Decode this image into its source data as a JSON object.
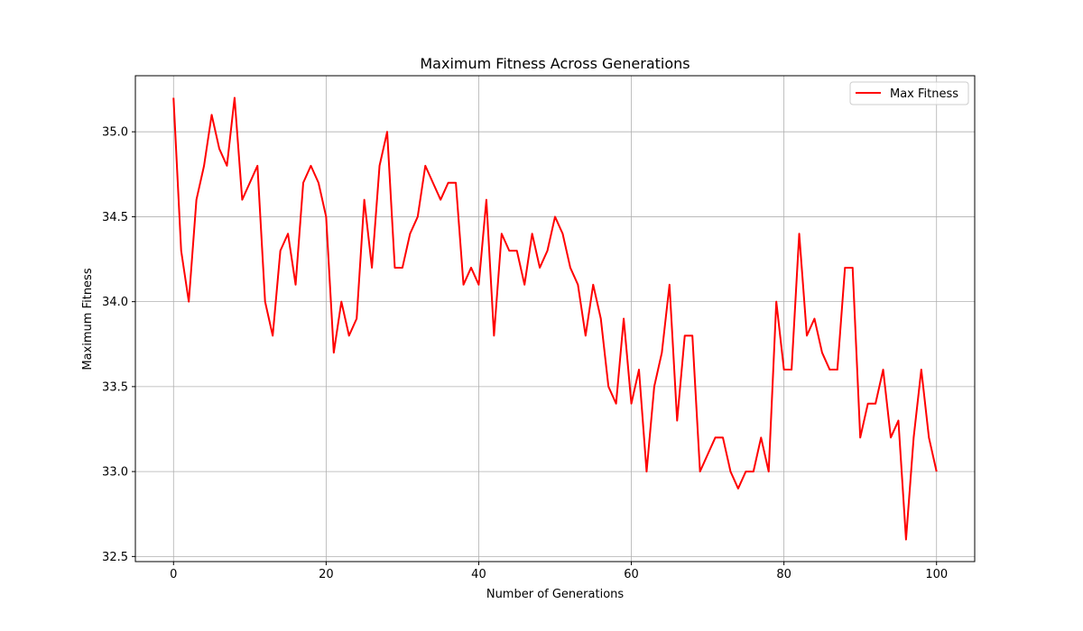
{
  "chart_data": {
    "type": "line",
    "title": "Maximum Fitness Across Generations",
    "xlabel": "Number of Generations",
    "ylabel": "Maximum Fitness",
    "xlim": [
      -5,
      105
    ],
    "ylim": [
      32.47,
      35.33
    ],
    "xticks": [
      0,
      20,
      40,
      60,
      80,
      100
    ],
    "yticks": [
      32.5,
      33.0,
      33.5,
      34.0,
      34.5,
      35.0
    ],
    "xtick_labels": [
      "0",
      "20",
      "40",
      "60",
      "80",
      "100"
    ],
    "ytick_labels": [
      "32.5",
      "33.0",
      "33.5",
      "34.0",
      "34.5",
      "35.0"
    ],
    "grid": true,
    "legend": {
      "position": "top-right",
      "entries": [
        "Max Fitness"
      ]
    },
    "series": [
      {
        "name": "Max Fitness",
        "color": "#ff0000",
        "x": [
          0,
          1,
          2,
          3,
          4,
          5,
          6,
          7,
          8,
          9,
          10,
          11,
          12,
          13,
          14,
          15,
          16,
          17,
          18,
          19,
          20,
          21,
          22,
          23,
          24,
          25,
          26,
          27,
          28,
          29,
          30,
          31,
          32,
          33,
          34,
          35,
          36,
          37,
          38,
          39,
          40,
          41,
          42,
          43,
          44,
          45,
          46,
          47,
          48,
          49,
          50,
          51,
          52,
          53,
          54,
          55,
          56,
          57,
          58,
          59,
          60,
          61,
          62,
          63,
          64,
          65,
          66,
          67,
          68,
          69,
          70,
          71,
          72,
          73,
          74,
          75,
          76,
          77,
          78,
          79,
          80,
          81,
          82,
          83,
          84,
          85,
          86,
          87,
          88,
          89,
          90,
          91,
          92,
          93,
          94,
          95,
          96,
          97,
          98,
          99,
          100
        ],
        "values": [
          35.2,
          34.3,
          34.0,
          34.6,
          34.8,
          35.1,
          34.9,
          34.8,
          35.2,
          34.6,
          34.7,
          34.8,
          34.0,
          33.8,
          34.3,
          34.4,
          34.1,
          34.7,
          34.8,
          34.7,
          34.5,
          33.7,
          34.0,
          33.8,
          33.9,
          34.6,
          34.2,
          34.8,
          35.0,
          34.2,
          34.2,
          34.4,
          34.5,
          34.8,
          34.7,
          34.6,
          34.7,
          34.7,
          34.1,
          34.2,
          34.1,
          34.6,
          33.8,
          34.4,
          34.3,
          34.3,
          34.1,
          34.4,
          34.2,
          34.3,
          34.5,
          34.4,
          34.2,
          34.1,
          33.8,
          34.1,
          33.9,
          33.5,
          33.4,
          33.9,
          33.4,
          33.6,
          33.0,
          33.5,
          33.7,
          34.1,
          33.3,
          33.8,
          33.8,
          33.0,
          33.1,
          33.2,
          33.2,
          33.0,
          32.9,
          33.0,
          33.0,
          33.2,
          33.0,
          34.0,
          33.6,
          33.6,
          34.4,
          33.8,
          33.9,
          33.7,
          33.6,
          33.6,
          34.2,
          34.2,
          33.2,
          33.4,
          33.4,
          33.6,
          33.2,
          33.3,
          32.6,
          33.2,
          33.6,
          33.2,
          33.0
        ]
      }
    ]
  }
}
